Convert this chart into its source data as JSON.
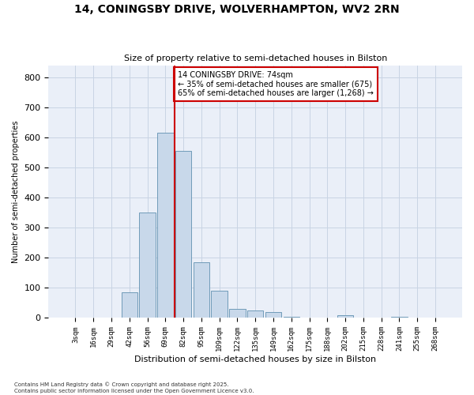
{
  "title_line1": "14, CONINGSBY DRIVE, WOLVERHAMPTON, WV2 2RN",
  "title_line2": "Size of property relative to semi-detached houses in Bilston",
  "xlabel": "Distribution of semi-detached houses by size in Bilston",
  "ylabel": "Number of semi-detached properties",
  "bin_labels": [
    "3sqm",
    "16sqm",
    "29sqm",
    "42sqm",
    "56sqm",
    "69sqm",
    "82sqm",
    "95sqm",
    "109sqm",
    "122sqm",
    "135sqm",
    "149sqm",
    "162sqm",
    "175sqm",
    "188sqm",
    "202sqm",
    "215sqm",
    "228sqm",
    "241sqm",
    "255sqm",
    "268sqm"
  ],
  "bar_heights": [
    2,
    0,
    0,
    85,
    350,
    615,
    555,
    185,
    90,
    30,
    25,
    20,
    5,
    0,
    0,
    10,
    0,
    0,
    5,
    0,
    0
  ],
  "bar_color": "#c8d8ea",
  "bar_edge_color": "#6090b0",
  "vline_index": 6,
  "annotation_text": "14 CONINGSBY DRIVE: 74sqm\n← 35% of semi-detached houses are smaller (675)\n65% of semi-detached houses are larger (1,268) →",
  "vline_color": "#cc0000",
  "box_color": "#cc0000",
  "ylim": [
    0,
    840
  ],
  "yticks": [
    0,
    100,
    200,
    300,
    400,
    500,
    600,
    700,
    800
  ],
  "grid_color": "#c8d4e4",
  "bg_color": "#eaeff8",
  "footnote": "Contains HM Land Registry data © Crown copyright and database right 2025.\nContains public sector information licensed under the Open Government Licence v3.0."
}
